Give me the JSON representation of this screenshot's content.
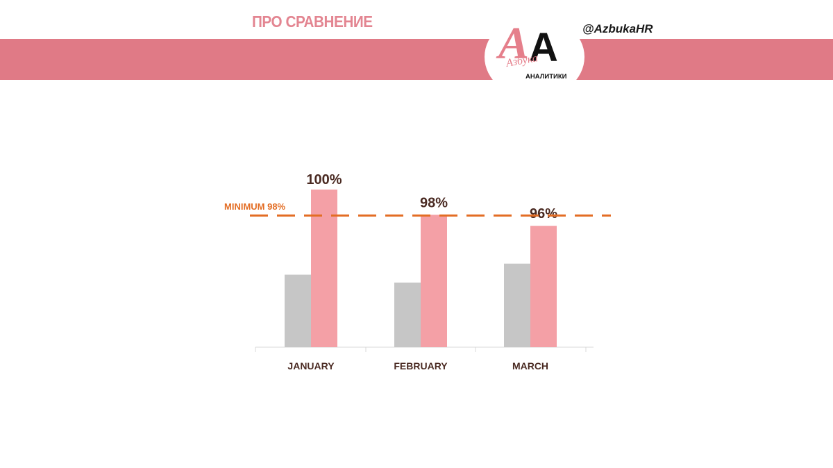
{
  "header": {
    "title": "ПРО СРАВНЕНИЕ",
    "handle": "@AzbukaHR",
    "logo": {
      "letters": "AA",
      "script_text": "Азбука",
      "subtitle": "АНАЛИТИКИ"
    }
  },
  "colors": {
    "band": "#e07a86",
    "title": "#e38591",
    "bar_gray": "#c6c6c6",
    "bar_pink": "#f4a0a6",
    "threshold": "#e36d24",
    "label_dark": "#4a2a22"
  },
  "chart_data": {
    "type": "bar",
    "categories": [
      "JANUARY",
      "FEBRUARY",
      "MARCH"
    ],
    "series": [
      {
        "values": [
          46,
          41,
          53
        ]
      },
      {
        "values": [
          100,
          84,
          77
        ],
        "data_labels": [
          "100%",
          "98%",
          "96%"
        ]
      }
    ],
    "threshold": {
      "label": "MINIMUM 98%",
      "value": 84
    },
    "ylim": [
      0,
      100
    ],
    "grid": false
  }
}
